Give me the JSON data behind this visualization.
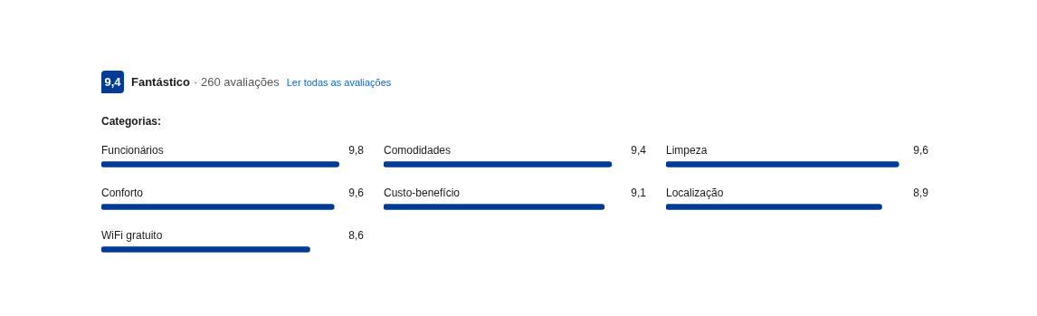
{
  "chart_data": [
    {
      "type": "other",
      "title": "Categorias:",
      "annotations": [
        "9,4",
        "Fantástico",
        "· 260 avaliações",
        "Ler todas as avaliações"
      ]
    },
    {
      "type": "bar",
      "orientation": "horizontal",
      "categories": [
        "Funcionários",
        "Conforto",
        "WiFi gratuito"
      ],
      "values": [
        9.8,
        9.6,
        8.6
      ],
      "value_labels": [
        "9,8",
        "9,6",
        "8,6"
      ],
      "color": "#003b95",
      "tick_labels": false
    },
    {
      "type": "bar",
      "orientation": "horizontal",
      "categories": [
        "Comodidades",
        "Custo-benefício"
      ],
      "values": [
        9.4,
        9.1
      ],
      "value_labels": [
        "9,4",
        "9,1"
      ],
      "color": "#003b95",
      "tick_labels": false
    },
    {
      "type": "bar",
      "orientation": "horizontal",
      "categories": [
        "Limpeza",
        "Localização"
      ],
      "values": [
        9.6,
        8.9
      ],
      "value_labels": [
        "9,6",
        "8,9"
      ],
      "color": "#003b95",
      "tick_labels": false
    }
  ]
}
